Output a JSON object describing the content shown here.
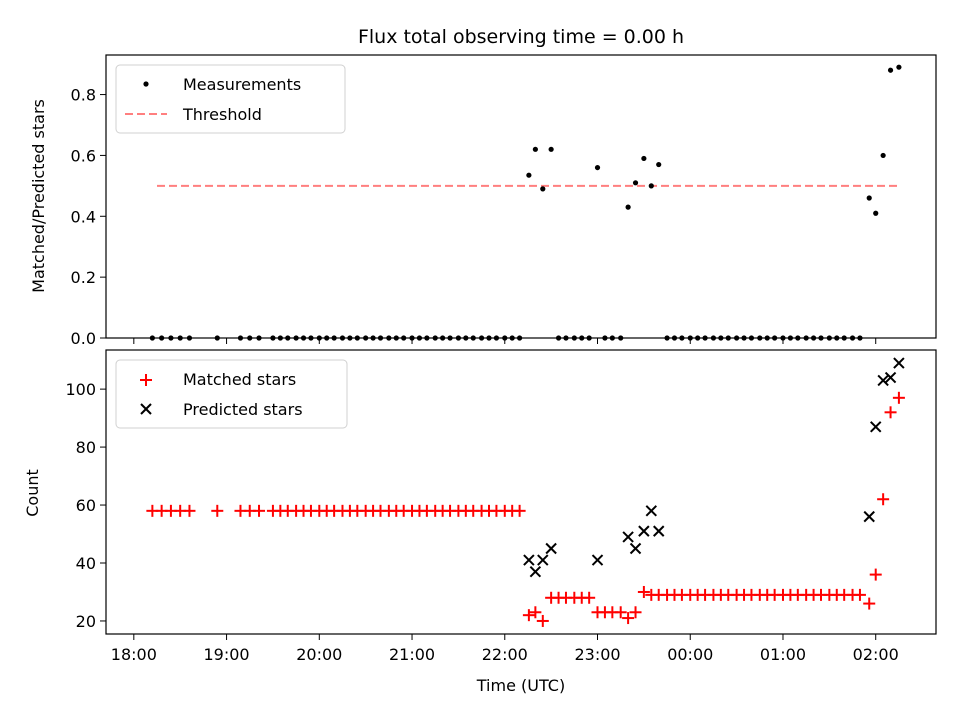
{
  "title": "Flux total observing time = 0.00 h",
  "colors": {
    "measurements": "#000000",
    "threshold": "#ff7f7f",
    "matched": "#ff0000",
    "predicted": "#000000"
  },
  "chart_data": [
    {
      "type": "scatter",
      "name": "ratio",
      "ylabel": "Matched/Predicted stars",
      "ylim": [
        0,
        0.93
      ],
      "yticks": [
        0.0,
        0.2,
        0.4,
        0.6,
        0.8
      ],
      "ytick_labels": [
        "0.0",
        "0.2",
        "0.4",
        "0.6",
        "0.8"
      ],
      "legend": [
        "Measurements",
        "Threshold"
      ],
      "legend_position": "upper-left",
      "threshold": {
        "value": 0.5,
        "x_start": 18.25,
        "x_end": 26.25
      },
      "series": [
        {
          "name": "Measurements",
          "points": [
            [
              18.2,
              0
            ],
            [
              18.3,
              0
            ],
            [
              18.4,
              0
            ],
            [
              18.5,
              0
            ],
            [
              18.6,
              0
            ],
            [
              18.9,
              0
            ],
            [
              19.15,
              0
            ],
            [
              19.25,
              0
            ],
            [
              19.35,
              0
            ],
            [
              19.5,
              0
            ],
            [
              19.58,
              0
            ],
            [
              19.66,
              0
            ],
            [
              19.75,
              0
            ],
            [
              19.83,
              0
            ],
            [
              19.91,
              0
            ],
            [
              20.0,
              0
            ],
            [
              20.08,
              0
            ],
            [
              20.16,
              0
            ],
            [
              20.25,
              0
            ],
            [
              20.33,
              0
            ],
            [
              20.41,
              0
            ],
            [
              20.5,
              0
            ],
            [
              20.58,
              0
            ],
            [
              20.66,
              0
            ],
            [
              20.75,
              0
            ],
            [
              20.83,
              0
            ],
            [
              20.91,
              0
            ],
            [
              21.0,
              0
            ],
            [
              21.08,
              0
            ],
            [
              21.16,
              0
            ],
            [
              21.25,
              0
            ],
            [
              21.33,
              0
            ],
            [
              21.41,
              0
            ],
            [
              21.5,
              0
            ],
            [
              21.58,
              0
            ],
            [
              21.66,
              0
            ],
            [
              21.75,
              0
            ],
            [
              21.83,
              0
            ],
            [
              21.91,
              0
            ],
            [
              22.0,
              0
            ],
            [
              22.08,
              0
            ],
            [
              22.16,
              0
            ],
            [
              22.26,
              0.535
            ],
            [
              22.33,
              0.62
            ],
            [
              22.41,
              0.49
            ],
            [
              22.5,
              0.62
            ],
            [
              22.58,
              0
            ],
            [
              22.66,
              0
            ],
            [
              22.75,
              0
            ],
            [
              22.83,
              0
            ],
            [
              22.91,
              0
            ],
            [
              23.0,
              0.56
            ],
            [
              23.08,
              0
            ],
            [
              23.16,
              0
            ],
            [
              23.25,
              0
            ],
            [
              23.33,
              0.43
            ],
            [
              23.41,
              0.51
            ],
            [
              23.5,
              0.59
            ],
            [
              23.58,
              0.5
            ],
            [
              23.66,
              0.57
            ],
            [
              23.75,
              0
            ],
            [
              23.83,
              0
            ],
            [
              23.91,
              0
            ],
            [
              24.0,
              0
            ],
            [
              24.08,
              0
            ],
            [
              24.16,
              0
            ],
            [
              24.25,
              0
            ],
            [
              24.33,
              0
            ],
            [
              24.41,
              0
            ],
            [
              24.5,
              0
            ],
            [
              24.58,
              0
            ],
            [
              24.66,
              0
            ],
            [
              24.75,
              0
            ],
            [
              24.83,
              0
            ],
            [
              24.91,
              0
            ],
            [
              25.0,
              0
            ],
            [
              25.08,
              0
            ],
            [
              25.16,
              0
            ],
            [
              25.25,
              0
            ],
            [
              25.33,
              0
            ],
            [
              25.41,
              0
            ],
            [
              25.5,
              0
            ],
            [
              25.58,
              0
            ],
            [
              25.66,
              0
            ],
            [
              25.75,
              0
            ],
            [
              25.83,
              0
            ],
            [
              25.93,
              0.46
            ],
            [
              26.0,
              0.41
            ],
            [
              26.08,
              0.6
            ],
            [
              26.16,
              0.88
            ],
            [
              26.25,
              0.89
            ]
          ]
        }
      ]
    },
    {
      "type": "scatter",
      "name": "counts",
      "xlabel": "Time (UTC)",
      "ylabel": "Count",
      "xlim": [
        17.7,
        26.65
      ],
      "ylim": [
        15.5,
        113.5
      ],
      "yticks": [
        20,
        40,
        60,
        80,
        100
      ],
      "ytick_labels": [
        "20",
        "40",
        "60",
        "80",
        "100"
      ],
      "xticks": [
        18,
        19,
        20,
        21,
        22,
        23,
        24,
        25,
        26
      ],
      "xtick_labels": [
        "18:00",
        "19:00",
        "20:00",
        "21:00",
        "22:00",
        "23:00",
        "00:00",
        "01:00",
        "02:00"
      ],
      "legend": [
        "Matched stars",
        "Predicted stars"
      ],
      "legend_position": "upper-left",
      "series": [
        {
          "name": "Matched stars",
          "points": [
            [
              18.2,
              58
            ],
            [
              18.3,
              58
            ],
            [
              18.4,
              58
            ],
            [
              18.5,
              58
            ],
            [
              18.6,
              58
            ],
            [
              18.9,
              58
            ],
            [
              19.15,
              58
            ],
            [
              19.25,
              58
            ],
            [
              19.35,
              58
            ],
            [
              19.5,
              58
            ],
            [
              19.58,
              58
            ],
            [
              19.66,
              58
            ],
            [
              19.75,
              58
            ],
            [
              19.83,
              58
            ],
            [
              19.91,
              58
            ],
            [
              20.0,
              58
            ],
            [
              20.08,
              58
            ],
            [
              20.16,
              58
            ],
            [
              20.25,
              58
            ],
            [
              20.33,
              58
            ],
            [
              20.41,
              58
            ],
            [
              20.5,
              58
            ],
            [
              20.58,
              58
            ],
            [
              20.66,
              58
            ],
            [
              20.75,
              58
            ],
            [
              20.83,
              58
            ],
            [
              20.91,
              58
            ],
            [
              21.0,
              58
            ],
            [
              21.08,
              58
            ],
            [
              21.16,
              58
            ],
            [
              21.25,
              58
            ],
            [
              21.33,
              58
            ],
            [
              21.41,
              58
            ],
            [
              21.5,
              58
            ],
            [
              21.58,
              58
            ],
            [
              21.66,
              58
            ],
            [
              21.75,
              58
            ],
            [
              21.83,
              58
            ],
            [
              21.91,
              58
            ],
            [
              22.0,
              58
            ],
            [
              22.08,
              58
            ],
            [
              22.16,
              58
            ],
            [
              22.26,
              22
            ],
            [
              22.33,
              23
            ],
            [
              22.41,
              20
            ],
            [
              22.5,
              28
            ],
            [
              22.58,
              28
            ],
            [
              22.66,
              28
            ],
            [
              22.75,
              28
            ],
            [
              22.83,
              28
            ],
            [
              22.91,
              28
            ],
            [
              23.0,
              23
            ],
            [
              23.08,
              23
            ],
            [
              23.16,
              23
            ],
            [
              23.25,
              23
            ],
            [
              23.33,
              21
            ],
            [
              23.41,
              23
            ],
            [
              23.5,
              30
            ],
            [
              23.58,
              29
            ],
            [
              23.66,
              29
            ],
            [
              23.75,
              29
            ],
            [
              23.83,
              29
            ],
            [
              23.91,
              29
            ],
            [
              24.0,
              29
            ],
            [
              24.08,
              29
            ],
            [
              24.16,
              29
            ],
            [
              24.25,
              29
            ],
            [
              24.33,
              29
            ],
            [
              24.41,
              29
            ],
            [
              24.5,
              29
            ],
            [
              24.58,
              29
            ],
            [
              24.66,
              29
            ],
            [
              24.75,
              29
            ],
            [
              24.83,
              29
            ],
            [
              24.91,
              29
            ],
            [
              25.0,
              29
            ],
            [
              25.08,
              29
            ],
            [
              25.16,
              29
            ],
            [
              25.25,
              29
            ],
            [
              25.33,
              29
            ],
            [
              25.41,
              29
            ],
            [
              25.5,
              29
            ],
            [
              25.58,
              29
            ],
            [
              25.66,
              29
            ],
            [
              25.75,
              29
            ],
            [
              25.83,
              29
            ],
            [
              25.93,
              26
            ],
            [
              26.0,
              36
            ],
            [
              26.08,
              62
            ],
            [
              26.16,
              92
            ],
            [
              26.25,
              97
            ]
          ]
        },
        {
          "name": "Predicted stars",
          "points": [
            [
              22.26,
              41
            ],
            [
              22.33,
              37
            ],
            [
              22.41,
              41
            ],
            [
              22.5,
              45
            ],
            [
              23.0,
              41
            ],
            [
              23.33,
              49
            ],
            [
              23.41,
              45
            ],
            [
              23.5,
              51
            ],
            [
              23.58,
              58
            ],
            [
              23.66,
              51
            ],
            [
              25.93,
              56
            ],
            [
              26.0,
              87
            ],
            [
              26.08,
              103
            ],
            [
              26.16,
              104
            ],
            [
              26.25,
              109
            ]
          ]
        }
      ]
    }
  ]
}
